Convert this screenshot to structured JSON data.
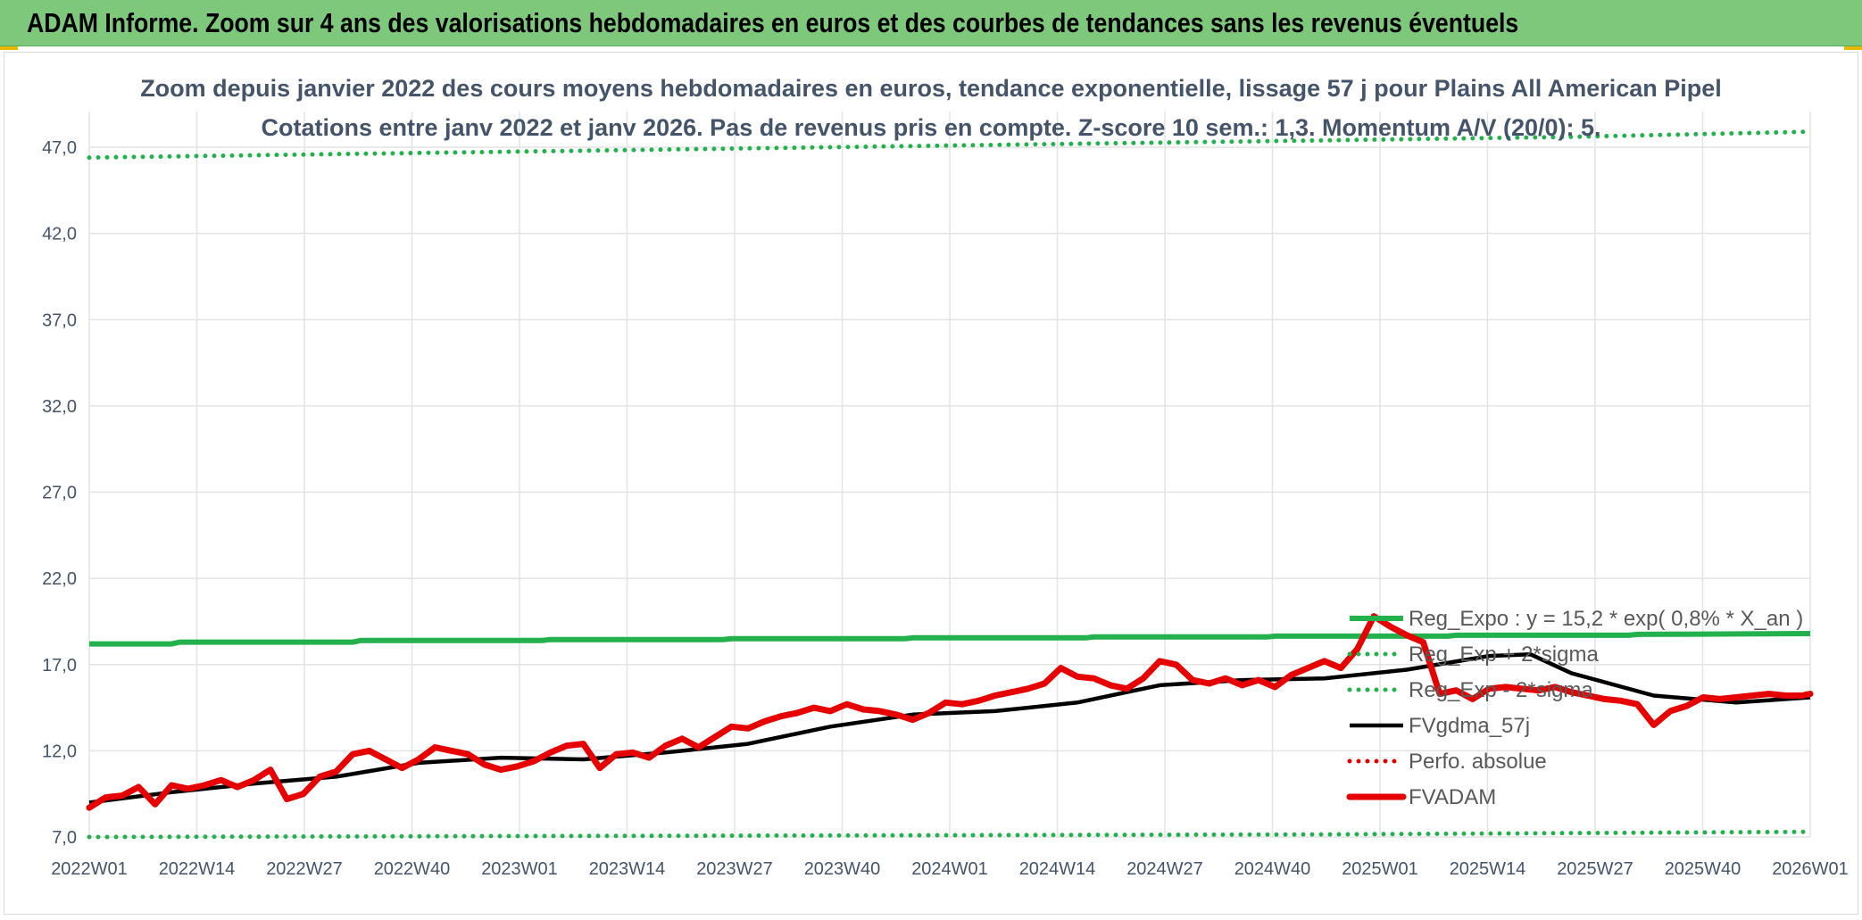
{
  "banner": {
    "title": "ADAM Informe. Zoom sur 4 ans des valorisations hebdomadaires en euros et des courbes de tendances sans les revenus éventuels"
  },
  "colors": {
    "regression": "#22b14c",
    "sigma": "#22b14c",
    "moving_average": "#000000",
    "perfo": "#e00000",
    "price": "#e60000",
    "grid": "#e3e3e3",
    "text": "#44546a"
  },
  "chart_data": {
    "type": "line",
    "title": "Zoom depuis janvier 2022 des cours moyens hebdomadaires en euros, tendance exponentielle, lissage 57 j pour Plains All American Pipel",
    "subtitle": "Cotations entre janv 2022 et janv 2026. Pas de revenus pris en compte. Z-score 10 sem.: 1,3. Momentum A/V (20/0): 5.",
    "xlabel": "",
    "ylabel": "",
    "ylim": [
      7.0,
      47.0
    ],
    "y_ticks": [
      "7,0",
      "12,0",
      "17,0",
      "22,0",
      "27,0",
      "32,0",
      "37,0",
      "42,0",
      "47,0"
    ],
    "x_ticks": [
      "2022W01",
      "2022W14",
      "2022W27",
      "2022W40",
      "2023W01",
      "2023W14",
      "2023W27",
      "2023W40",
      "2024W01",
      "2024W14",
      "2024W27",
      "2024W40",
      "2025W01",
      "2025W14",
      "2025W27",
      "2025W40",
      "2026W01"
    ],
    "x_range_weeks": [
      0,
      209
    ],
    "grid": true,
    "legend_position": "right",
    "series": [
      {
        "name": "Reg_Expo : y = 15,2 * exp( 0,8% *  X_an )",
        "style": "solid",
        "x": [
          0,
          10,
          11,
          32,
          33,
          55,
          56,
          77,
          78,
          99,
          100,
          121,
          122,
          143,
          144,
          165,
          166,
          187,
          188,
          209
        ],
        "values": [
          18.2,
          18.2,
          18.3,
          18.3,
          18.4,
          18.4,
          18.45,
          18.45,
          18.5,
          18.5,
          18.55,
          18.55,
          18.6,
          18.6,
          18.65,
          18.65,
          18.7,
          18.7,
          18.75,
          18.8
        ]
      },
      {
        "name": "Reg_Exp + 2*sigma",
        "style": "dotted",
        "x": [
          0,
          30,
          60,
          90,
          120,
          150,
          180,
          209
        ],
        "values": [
          46.4,
          46.6,
          46.8,
          47.0,
          47.2,
          47.4,
          47.6,
          47.9
        ]
      },
      {
        "name": "Reg_Exp - 2*sigma",
        "style": "dotted",
        "x": [
          0,
          50,
          100,
          150,
          209
        ],
        "values": [
          7.0,
          7.05,
          7.1,
          7.15,
          7.3
        ]
      },
      {
        "name": "FVgdma_57j",
        "style": "solid",
        "x": [
          0,
          10,
          20,
          30,
          40,
          50,
          60,
          70,
          80,
          90,
          100,
          110,
          120,
          130,
          140,
          150,
          160,
          170,
          175,
          180,
          190,
          200,
          209
        ],
        "values": [
          9.0,
          9.6,
          10.1,
          10.5,
          11.3,
          11.6,
          11.5,
          11.9,
          12.4,
          13.4,
          14.1,
          14.3,
          14.8,
          15.8,
          16.1,
          16.2,
          16.7,
          17.5,
          17.6,
          16.5,
          15.2,
          14.8,
          15.1
        ]
      },
      {
        "name": "Perfo. absolue",
        "style": "dotted",
        "x": [],
        "values": []
      },
      {
        "name": "FVADAM",
        "style": "thick",
        "x": [
          0,
          2,
          4,
          6,
          8,
          10,
          12,
          14,
          16,
          18,
          20,
          22,
          24,
          26,
          28,
          30,
          32,
          34,
          36,
          38,
          40,
          42,
          44,
          46,
          48,
          50,
          52,
          54,
          56,
          58,
          60,
          62,
          64,
          66,
          68,
          70,
          72,
          74,
          76,
          78,
          80,
          82,
          84,
          86,
          88,
          90,
          92,
          94,
          96,
          98,
          100,
          102,
          104,
          106,
          108,
          110,
          112,
          114,
          116,
          118,
          120,
          122,
          124,
          126,
          128,
          130,
          132,
          134,
          136,
          138,
          140,
          142,
          144,
          146,
          148,
          150,
          152,
          154,
          156,
          158,
          160,
          162,
          164,
          166,
          168,
          170,
          172,
          174,
          176,
          178,
          180,
          182,
          184,
          186,
          188,
          190,
          192,
          194,
          196,
          198,
          200,
          202,
          204,
          206,
          208,
          209
        ],
        "values": [
          8.7,
          9.3,
          9.4,
          9.9,
          8.9,
          10.0,
          9.8,
          10.0,
          10.3,
          9.9,
          10.3,
          10.9,
          9.2,
          9.5,
          10.5,
          10.8,
          11.8,
          12.0,
          11.5,
          11.0,
          11.5,
          12.2,
          12.0,
          11.8,
          11.2,
          10.9,
          11.1,
          11.4,
          11.9,
          12.3,
          12.4,
          11.0,
          11.8,
          11.9,
          11.6,
          12.3,
          12.7,
          12.2,
          12.8,
          13.4,
          13.3,
          13.7,
          14.0,
          14.2,
          14.5,
          14.3,
          14.7,
          14.4,
          14.3,
          14.1,
          13.8,
          14.2,
          14.8,
          14.7,
          14.9,
          15.2,
          15.4,
          15.6,
          15.9,
          16.8,
          16.3,
          16.2,
          15.8,
          15.6,
          16.2,
          17.2,
          17.0,
          16.1,
          15.9,
          16.2,
          15.8,
          16.1,
          15.7,
          16.4,
          16.8,
          17.2,
          16.8,
          17.9,
          19.8,
          19.2,
          18.7,
          18.3,
          15.3,
          15.5,
          15.0,
          15.6,
          15.7,
          15.6,
          15.5,
          15.7,
          15.4,
          15.2,
          15.0,
          14.9,
          14.7,
          13.5,
          14.3,
          14.6,
          15.1,
          15.0,
          15.1,
          15.2,
          15.3,
          15.2,
          15.2,
          15.3
        ]
      }
    ]
  }
}
